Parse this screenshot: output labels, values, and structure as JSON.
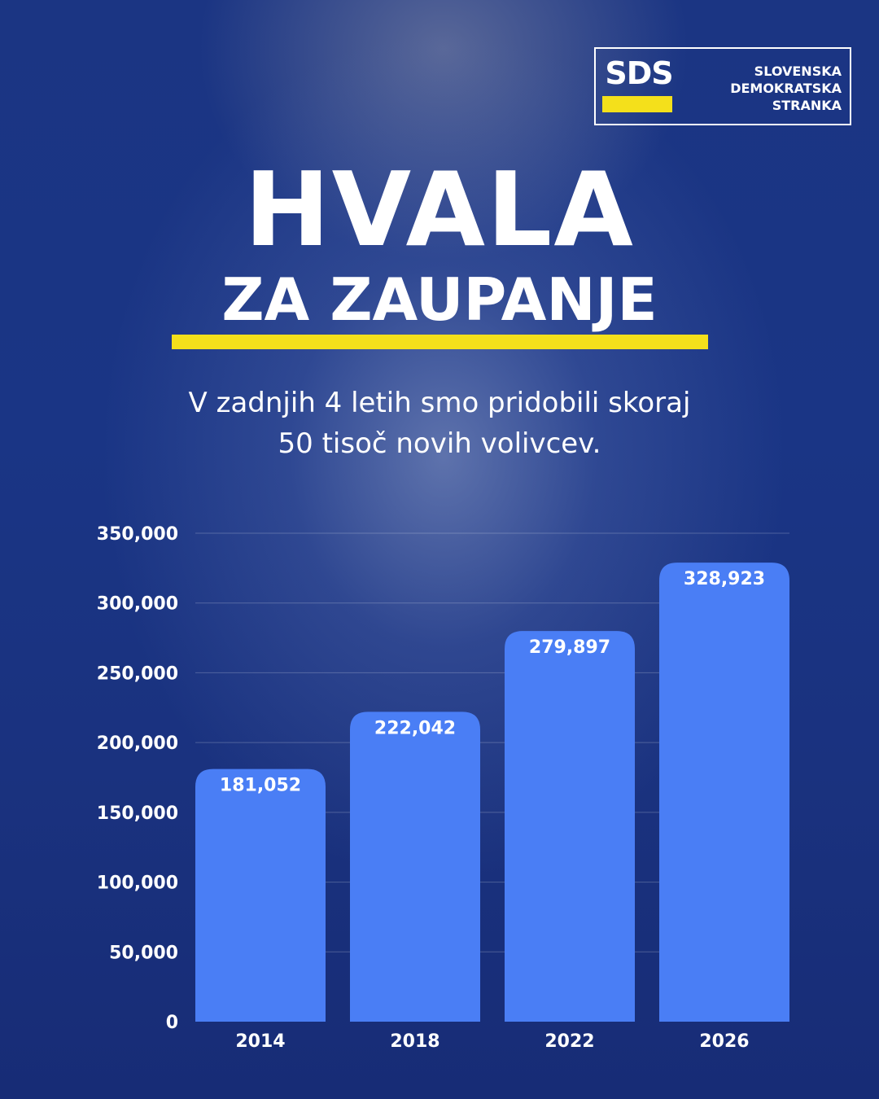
{
  "logo": {
    "mark": "SDS",
    "name_lines": [
      "SLOVENSKA",
      "DEMOKRATSKA",
      "STRANKA"
    ],
    "accent_color": "#f4e01b"
  },
  "headline": "HVALA",
  "subheadline": "ZA ZAUPANJE",
  "intro_lines": [
    "V zadnjih 4 letih smo pridobili  skoraj",
    "50 tisoč novih volivcev."
  ],
  "colors": {
    "background": "#1a3585",
    "bar": "#4a7ef5",
    "accent": "#f4e01b"
  },
  "chart_data": {
    "type": "bar",
    "categories": [
      "2014",
      "2018",
      "2022",
      "2026"
    ],
    "values": [
      181052,
      222042,
      279897,
      328923
    ],
    "value_labels": [
      "181,052",
      "222,042",
      "279,897",
      "328,923"
    ],
    "yticks": [
      0,
      50000,
      100000,
      150000,
      200000,
      250000,
      300000,
      350000
    ],
    "ytick_labels": [
      "0",
      "50,000",
      "100,000",
      "150,000",
      "200,000",
      "250,000",
      "300,000",
      "350,000"
    ],
    "ylim": [
      0,
      350000
    ],
    "grid": true,
    "title": "",
    "xlabel": "",
    "ylabel": ""
  }
}
